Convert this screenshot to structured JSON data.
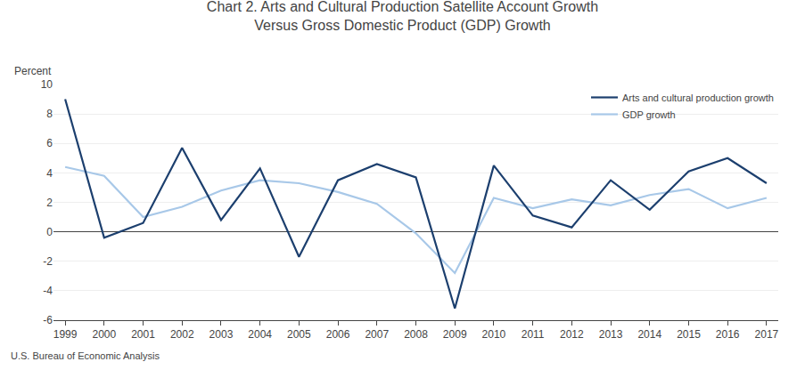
{
  "chart_data": {
    "type": "line",
    "title": "Chart 2. Arts and Cultural Production Satellite Account Growth",
    "subtitle": "Versus Gross Domestic Product (GDP) Growth",
    "ylabel": "Percent",
    "annotations": [
      "U.S. Bureau of Economic Analysis"
    ],
    "x": [
      1999,
      2000,
      2001,
      2002,
      2003,
      2004,
      2005,
      2006,
      2007,
      2008,
      2009,
      2010,
      2011,
      2012,
      2013,
      2014,
      2015,
      2016,
      2017
    ],
    "series": [
      {
        "name": "Arts and cultural production growth",
        "color": "#1c3f6e",
        "values": [
          9.0,
          -0.4,
          0.6,
          5.7,
          0.8,
          4.3,
          -1.7,
          3.5,
          4.6,
          3.7,
          -5.2,
          4.5,
          1.1,
          0.3,
          3.5,
          1.5,
          4.1,
          5.0,
          3.3
        ]
      },
      {
        "name": "GDP growth",
        "color": "#a8c8e8",
        "values": [
          4.4,
          3.8,
          1.0,
          1.7,
          2.8,
          3.5,
          3.3,
          2.7,
          1.9,
          -0.1,
          -2.8,
          2.3,
          1.6,
          2.2,
          1.8,
          2.5,
          2.9,
          1.6,
          2.3
        ]
      }
    ],
    "xlim": [
      1998.7,
      2017.3
    ],
    "xticks": [
      1999,
      2000,
      2001,
      2002,
      2003,
      2004,
      2005,
      2006,
      2007,
      2008,
      2009,
      2010,
      2011,
      2012,
      2013,
      2014,
      2015,
      2016,
      2017
    ],
    "ylim": [
      -6,
      10
    ],
    "yticks": [
      -6,
      -4,
      -2,
      0,
      2,
      4,
      6,
      8,
      10
    ],
    "grid": "y",
    "legend": "upper right"
  }
}
